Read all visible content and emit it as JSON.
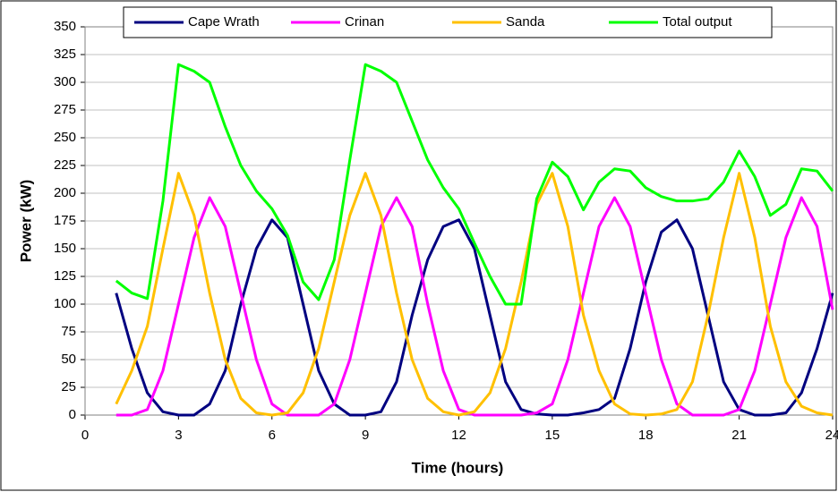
{
  "chart_data": {
    "type": "line",
    "x": [
      1,
      1.5,
      2,
      2.5,
      3,
      3.5,
      4,
      4.5,
      5,
      5.5,
      6,
      6.5,
      7,
      7.5,
      8,
      8.5,
      9,
      9.5,
      10,
      10.5,
      11,
      11.5,
      12,
      12.5,
      13,
      13.5,
      14,
      14.5,
      15,
      15.5,
      16,
      16.5,
      17,
      17.5,
      18,
      18.5,
      19,
      19.5,
      20,
      20.5,
      21,
      21.5,
      22,
      22.5,
      23,
      23.5,
      24
    ],
    "series": [
      {
        "name": "Cape Wrath",
        "color": "#000080",
        "values": [
          110,
          60,
          20,
          3,
          0,
          0,
          10,
          40,
          100,
          150,
          176,
          160,
          100,
          40,
          10,
          0,
          0,
          3,
          30,
          90,
          140,
          170,
          176,
          150,
          90,
          30,
          5,
          1,
          0,
          0,
          2,
          5,
          15,
          60,
          120,
          165,
          176,
          150,
          90,
          30,
          5,
          0,
          0,
          2,
          20,
          60,
          110
        ]
      },
      {
        "name": "Crinan",
        "color": "#ff00ff",
        "values": [
          0,
          0,
          5,
          40,
          100,
          160,
          196,
          170,
          110,
          50,
          10,
          0,
          0,
          0,
          10,
          50,
          110,
          170,
          196,
          170,
          100,
          40,
          5,
          0,
          0,
          0,
          0,
          2,
          10,
          50,
          110,
          170,
          196,
          170,
          110,
          50,
          10,
          0,
          0,
          0,
          5,
          40,
          100,
          160,
          196,
          170,
          95
        ]
      },
      {
        "name": "Sanda",
        "color": "#ffc000",
        "values": [
          10,
          40,
          80,
          150,
          218,
          180,
          110,
          50,
          15,
          2,
          0,
          2,
          20,
          60,
          120,
          180,
          218,
          180,
          110,
          50,
          15,
          3,
          0,
          3,
          20,
          60,
          120,
          190,
          218,
          170,
          90,
          40,
          10,
          1,
          0,
          1,
          5,
          30,
          90,
          160,
          218,
          160,
          80,
          30,
          8,
          2,
          0
        ]
      },
      {
        "name": "Total output",
        "color": "#00ff00",
        "values": [
          121,
          110,
          105,
          193,
          316,
          310,
          300,
          260,
          225,
          202,
          186,
          162,
          120,
          104,
          140,
          230,
          316,
          310,
          300,
          265,
          230,
          205,
          186,
          155,
          125,
          100,
          100,
          195,
          228,
          215,
          185,
          210,
          222,
          220,
          205,
          197,
          193,
          193,
          195,
          210,
          238,
          215,
          180,
          190,
          222,
          220,
          202
        ]
      }
    ],
    "xlim": [
      0,
      24
    ],
    "xticks": [
      0,
      3,
      6,
      9,
      12,
      15,
      18,
      21,
      24
    ],
    "ylim": [
      0,
      350
    ],
    "yticks": [
      0,
      25,
      50,
      75,
      100,
      125,
      150,
      175,
      200,
      225,
      250,
      275,
      300,
      325,
      350
    ],
    "xlabel": "Time (hours)",
    "ylabel": "Power (kW)",
    "grid": true,
    "legend": "top"
  }
}
